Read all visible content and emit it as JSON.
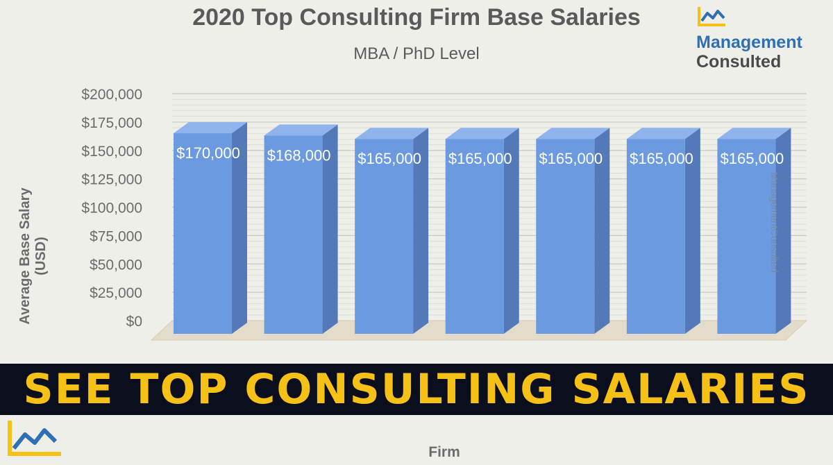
{
  "chart_data": {
    "type": "bar",
    "title": "2020 Top Consulting Firm Base Salaries",
    "subtitle": "MBA / PhD Level",
    "xlabel": "Firm",
    "ylabel": "Average Base Salary (USD)",
    "ylim": [
      0,
      200000
    ],
    "yticks": [
      "$0",
      "$25,000",
      "$50,000",
      "$75,000",
      "$100,000",
      "$125,000",
      "$150,000",
      "$175,000",
      "$200,000"
    ],
    "values": [
      170000,
      168000,
      165000,
      165000,
      165000,
      165000,
      165000
    ],
    "data_labels": [
      "$170,000",
      "$168,000",
      "$165,000",
      "$165,000",
      "$165,000",
      "$165,000",
      "$165,000"
    ],
    "bar_color": "#6b9ae0",
    "grid": true,
    "style": "3d-bar"
  },
  "branding": {
    "line1": "Management",
    "line2": "Consulted",
    "watermark": "ManagementConsulted",
    "accent": "#f6c117",
    "brand_blue": "#2f6fb4"
  },
  "banner": {
    "text": "SEE TOP CONSULTING SALARIES",
    "bg": "#0b0e1d",
    "color": "#f6c117"
  }
}
